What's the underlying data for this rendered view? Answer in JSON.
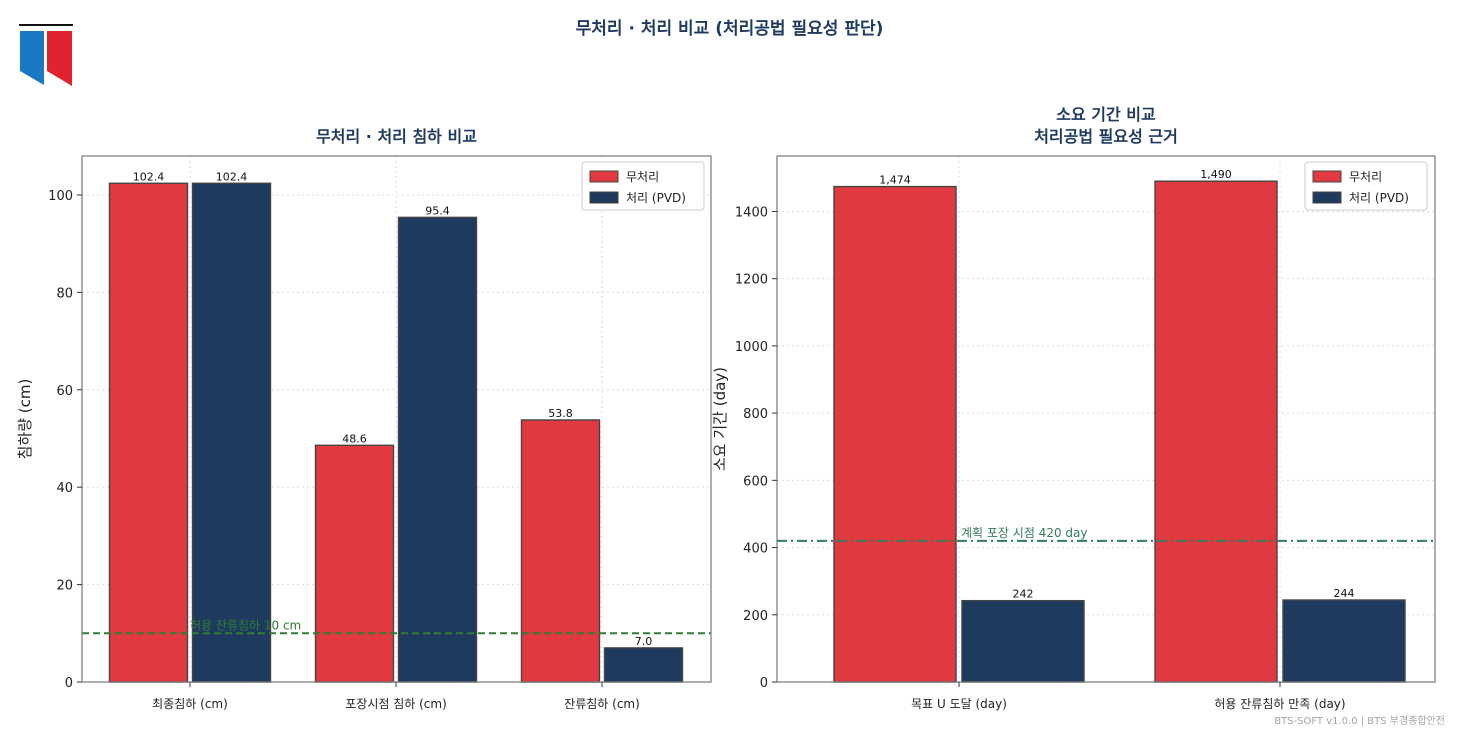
{
  "suptitle": "무처리 · 처리 비교 (처리공법 필요성 판단)",
  "footer": "BTS-SOFT v1.0.0  |  BTS 부경종합안전",
  "colors": {
    "untreated": "#e03a40",
    "treated": "#1f3a5f",
    "edge": "#444444",
    "axis_frame": "#777777",
    "title": "#1f3a5f",
    "ref_left": "#2e7d32",
    "ref_right": "#2e7d5b",
    "logo_blue": "#1a78c2",
    "logo_red": "#e0232e"
  },
  "logo_icon": "bookmark-flag-logo",
  "chart_data": [
    {
      "type": "bar",
      "title": "무처리 · 처리 침하 비교",
      "xlabel": "",
      "ylabel": "침하량 (cm)",
      "categories": [
        "최종침하 (cm)",
        "포장시점 침하 (cm)",
        "잔류침하 (cm)"
      ],
      "series": [
        {
          "name": "무처리",
          "values": [
            102.4,
            48.6,
            53.8
          ],
          "labels": [
            "102.4",
            "48.6",
            "53.8"
          ],
          "color_key": "untreated"
        },
        {
          "name": "처리 (PVD)",
          "values": [
            102.4,
            95.4,
            7.0
          ],
          "labels": [
            "102.4",
            "95.4",
            "7.0"
          ],
          "color_key": "treated"
        }
      ],
      "ylim": [
        0,
        108
      ],
      "yticks": [
        0,
        20,
        40,
        60,
        80,
        100
      ],
      "grid": true,
      "legend": "top-right",
      "reference_line": {
        "value": 10,
        "label": "허용 잔류침하 10 cm",
        "style": "dashed",
        "color_key": "ref_left"
      }
    },
    {
      "type": "bar",
      "title": "소요 기간 비교\n처리공법 필요성 근거",
      "xlabel": "",
      "ylabel": "소요 기간 (day)",
      "categories": [
        "목표 U 도달 (day)",
        "허용 잔류침하 만족 (day)"
      ],
      "series": [
        {
          "name": "무처리",
          "values": [
            1474,
            1490
          ],
          "labels": [
            "1,474",
            "1,490"
          ],
          "color_key": "untreated"
        },
        {
          "name": "처리 (PVD)",
          "values": [
            242,
            244
          ],
          "labels": [
            "242",
            "244"
          ],
          "color_key": "treated"
        }
      ],
      "ylim": [
        0,
        1565
      ],
      "yticks": [
        0,
        200,
        400,
        600,
        800,
        1000,
        1200,
        1400
      ],
      "grid": true,
      "legend": "top-right",
      "reference_line": {
        "value": 420,
        "label": "계획 포장 시점 420 day",
        "style": "dashdot",
        "color_key": "ref_right"
      }
    }
  ]
}
